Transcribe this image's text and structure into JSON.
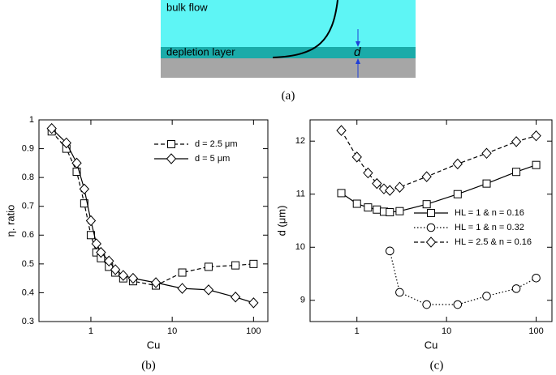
{
  "diagram": {
    "labels": [
      "bulk flow",
      "depletion layer",
      "d"
    ],
    "caption": "(a)"
  },
  "chart_data": [
    {
      "type": "line",
      "caption": "(b)",
      "xlabel": "Cu",
      "ylabel": "η. ratio",
      "log_x": true,
      "x": [
        0.33,
        0.5,
        0.67,
        0.83,
        1,
        1.17,
        1.33,
        1.67,
        2,
        2.5,
        3.3,
        6.3,
        13.3,
        28,
        60,
        100
      ],
      "xlim": [
        0.23,
        150
      ],
      "xticks": [
        1,
        10,
        100
      ],
      "ylim": [
        0.3,
        1
      ],
      "yticks": [
        0.3,
        0.4,
        0.5,
        0.6,
        0.7,
        0.8,
        0.9,
        1
      ],
      "legend": "upper right",
      "series": [
        {
          "name": "d = 2.5 μm",
          "color": "#000000",
          "dash": "dashed",
          "marker": "square",
          "values": [
            0.96,
            0.9,
            0.82,
            0.71,
            0.6,
            0.54,
            0.52,
            0.49,
            0.47,
            0.45,
            0.44,
            0.425,
            0.47,
            0.49,
            0.495,
            0.5
          ]
        },
        {
          "name": "d = 5 μm",
          "color": "#000000",
          "dash": "solid",
          "marker": "diamond",
          "values": [
            0.97,
            0.92,
            0.85,
            0.76,
            0.65,
            0.57,
            0.54,
            0.51,
            0.48,
            0.46,
            0.45,
            0.435,
            0.415,
            0.41,
            0.385,
            0.365
          ]
        }
      ]
    },
    {
      "type": "line",
      "caption": "(c)",
      "xlabel": "Cu",
      "ylabel": "d (μm)",
      "log_x": true,
      "x": [
        0.67,
        1,
        1.33,
        1.67,
        2,
        2.33,
        3,
        6,
        13.3,
        28,
        60,
        100
      ],
      "xlim": [
        0.3,
        150
      ],
      "xticks": [
        1,
        10,
        100
      ],
      "ylim": [
        8.6,
        12.4
      ],
      "yticks": [
        9,
        10,
        11,
        12
      ],
      "legend": "lower right",
      "series": [
        {
          "name": "HL = 1 & n = 0.16",
          "color": "#000000",
          "dash": "solid",
          "marker": "square",
          "values": [
            11.02,
            10.82,
            10.75,
            10.71,
            10.67,
            10.66,
            10.68,
            10.81,
            11.0,
            11.2,
            11.42,
            11.55
          ]
        },
        {
          "name": "HL = 1 & n = 0.32",
          "color": "#000000",
          "dash": "dotted",
          "marker": "circle",
          "values": [
            null,
            null,
            null,
            null,
            null,
            9.93,
            9.15,
            8.92,
            8.92,
            9.08,
            9.22,
            9.42
          ]
        },
        {
          "name": "HL = 2.5 & n = 0.16",
          "color": "#000000",
          "dash": "dashed",
          "marker": "diamond",
          "values": [
            12.2,
            11.7,
            11.4,
            11.2,
            11.1,
            11.07,
            11.13,
            11.33,
            11.57,
            11.77,
            11.99,
            12.1
          ]
        }
      ]
    }
  ]
}
